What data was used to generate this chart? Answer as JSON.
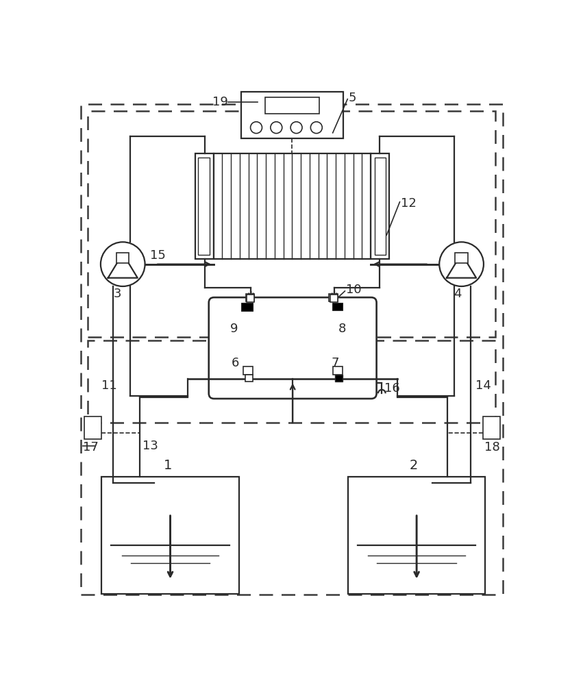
{
  "bg": "#ffffff",
  "lc": "#2a2a2a",
  "lw": 1.6,
  "fig_w": 8.32,
  "fig_h": 10.0,
  "dpi": 100
}
